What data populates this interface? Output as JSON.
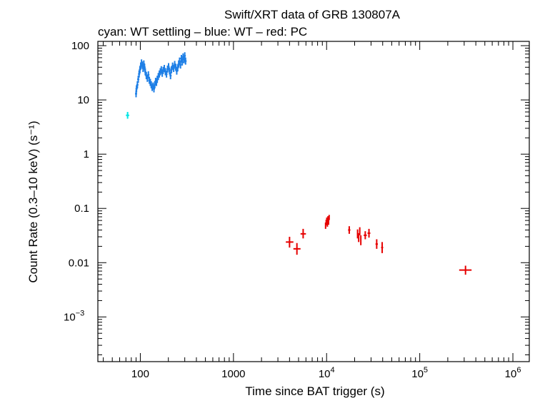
{
  "chart_data": {
    "type": "scatter",
    "title": "Swift/XRT data of GRB 130807A",
    "subtitle": "cyan: WT settling – blue: WT – red: PC",
    "xlabel": "Time since BAT trigger (s)",
    "ylabel": "Count Rate (0.3–10 keV) (s⁻¹)",
    "xscale": "log",
    "yscale": "log",
    "xlim": [
      35,
      1500000
    ],
    "ylim": [
      0.00015,
      120
    ],
    "x_ticks": [
      {
        "value": 100,
        "label": "100"
      },
      {
        "value": 1000,
        "label": "1000"
      },
      {
        "value": 10000,
        "label": "10",
        "exp": "4"
      },
      {
        "value": 100000,
        "label": "10",
        "exp": "5"
      },
      {
        "value": 1000000,
        "label": "10",
        "exp": "6"
      }
    ],
    "y_ticks": [
      {
        "value": 100,
        "label": "100"
      },
      {
        "value": 10,
        "label": "10"
      },
      {
        "value": 1,
        "label": "1"
      },
      {
        "value": 0.1,
        "label": "0.1"
      },
      {
        "value": 0.01,
        "label": "0.01"
      },
      {
        "value": 0.001,
        "label": "10",
        "exp": "−3"
      }
    ],
    "series": [
      {
        "name": "WT settling",
        "color": "#00e5e5",
        "points": [
          {
            "x": 73,
            "xlo": 70,
            "xhi": 76,
            "y": 5.2,
            "ylo": 4.5,
            "yhi": 6.0
          }
        ]
      },
      {
        "name": "WT",
        "color": "#1e7fe6",
        "points": [
          {
            "x": 90,
            "y": 13
          },
          {
            "x": 91,
            "y": 16
          },
          {
            "x": 93,
            "y": 19
          },
          {
            "x": 95,
            "y": 24
          },
          {
            "x": 97,
            "y": 30
          },
          {
            "x": 99,
            "y": 36
          },
          {
            "x": 101,
            "y": 42
          },
          {
            "x": 103,
            "y": 48
          },
          {
            "x": 105,
            "y": 44
          },
          {
            "x": 107,
            "y": 38
          },
          {
            "x": 109,
            "y": 46
          },
          {
            "x": 111,
            "y": 40
          },
          {
            "x": 113,
            "y": 33
          },
          {
            "x": 116,
            "y": 28
          },
          {
            "x": 119,
            "y": 25
          },
          {
            "x": 122,
            "y": 29
          },
          {
            "x": 125,
            "y": 23
          },
          {
            "x": 128,
            "y": 21
          },
          {
            "x": 131,
            "y": 19
          },
          {
            "x": 134,
            "y": 17
          },
          {
            "x": 137,
            "y": 18
          },
          {
            "x": 140,
            "y": 16
          },
          {
            "x": 143,
            "y": 19
          },
          {
            "x": 146,
            "y": 22
          },
          {
            "x": 149,
            "y": 21
          },
          {
            "x": 152,
            "y": 24
          },
          {
            "x": 156,
            "y": 27
          },
          {
            "x": 160,
            "y": 30
          },
          {
            "x": 164,
            "y": 33
          },
          {
            "x": 168,
            "y": 36
          },
          {
            "x": 172,
            "y": 31
          },
          {
            "x": 176,
            "y": 35
          },
          {
            "x": 181,
            "y": 38
          },
          {
            "x": 186,
            "y": 33
          },
          {
            "x": 191,
            "y": 30
          },
          {
            "x": 196,
            "y": 37
          },
          {
            "x": 201,
            "y": 41
          },
          {
            "x": 206,
            "y": 34
          },
          {
            "x": 211,
            "y": 28
          },
          {
            "x": 216,
            "y": 36
          },
          {
            "x": 222,
            "y": 42
          },
          {
            "x": 228,
            "y": 38
          },
          {
            "x": 234,
            "y": 45
          },
          {
            "x": 240,
            "y": 40
          },
          {
            "x": 246,
            "y": 34
          },
          {
            "x": 252,
            "y": 39
          },
          {
            "x": 258,
            "y": 46
          },
          {
            "x": 264,
            "y": 52
          },
          {
            "x": 270,
            "y": 44
          },
          {
            "x": 276,
            "y": 58
          },
          {
            "x": 282,
            "y": 50
          },
          {
            "x": 288,
            "y": 62
          },
          {
            "x": 294,
            "y": 55
          },
          {
            "x": 300,
            "y": 65
          },
          {
            "x": 306,
            "y": 52
          }
        ]
      },
      {
        "name": "PC",
        "color": "#e60000",
        "points": [
          {
            "x": 4000,
            "xlo": 3650,
            "xhi": 4400,
            "y": 0.024,
            "ylo": 0.019,
            "yhi": 0.03
          },
          {
            "x": 4800,
            "xlo": 4400,
            "xhi": 5250,
            "y": 0.018,
            "ylo": 0.014,
            "yhi": 0.023
          },
          {
            "x": 5600,
            "xlo": 5250,
            "xhi": 6000,
            "y": 0.034,
            "ylo": 0.028,
            "yhi": 0.042
          },
          {
            "x": 9750,
            "xlo": 9650,
            "xhi": 9850,
            "y": 0.048,
            "ylo": 0.042,
            "yhi": 0.055
          },
          {
            "x": 9900,
            "xlo": 9800,
            "xhi": 10000,
            "y": 0.055,
            "ylo": 0.049,
            "yhi": 0.062
          },
          {
            "x": 10050,
            "xlo": 9950,
            "xhi": 10150,
            "y": 0.06,
            "ylo": 0.053,
            "yhi": 0.068
          },
          {
            "x": 10200,
            "xlo": 10100,
            "xhi": 10300,
            "y": 0.052,
            "ylo": 0.046,
            "yhi": 0.059
          },
          {
            "x": 10350,
            "xlo": 10250,
            "xhi": 10450,
            "y": 0.064,
            "ylo": 0.057,
            "yhi": 0.072
          },
          {
            "x": 10500,
            "xlo": 10400,
            "xhi": 10600,
            "y": 0.057,
            "ylo": 0.05,
            "yhi": 0.064
          },
          {
            "x": 10650,
            "xlo": 10550,
            "xhi": 10750,
            "y": 0.068,
            "ylo": 0.061,
            "yhi": 0.076
          },
          {
            "x": 17500,
            "xlo": 17000,
            "xhi": 18000,
            "y": 0.04,
            "ylo": 0.034,
            "yhi": 0.047
          },
          {
            "x": 21500,
            "xlo": 21200,
            "xhi": 21800,
            "y": 0.034,
            "ylo": 0.028,
            "yhi": 0.041
          },
          {
            "x": 22100,
            "xlo": 21800,
            "xhi": 22400,
            "y": 0.029,
            "ylo": 0.024,
            "yhi": 0.035
          },
          {
            "x": 22700,
            "xlo": 22400,
            "xhi": 23000,
            "y": 0.038,
            "ylo": 0.032,
            "yhi": 0.045
          },
          {
            "x": 23300,
            "xlo": 23000,
            "xhi": 23600,
            "y": 0.026,
            "ylo": 0.021,
            "yhi": 0.032
          },
          {
            "x": 26000,
            "xlo": 25000,
            "xhi": 27000,
            "y": 0.032,
            "ylo": 0.027,
            "yhi": 0.038
          },
          {
            "x": 28500,
            "xlo": 27500,
            "xhi": 29500,
            "y": 0.035,
            "ylo": 0.029,
            "yhi": 0.042
          },
          {
            "x": 34500,
            "xlo": 33500,
            "xhi": 35500,
            "y": 0.022,
            "ylo": 0.018,
            "yhi": 0.027
          },
          {
            "x": 39500,
            "xlo": 38500,
            "xhi": 40500,
            "y": 0.019,
            "ylo": 0.015,
            "yhi": 0.024
          },
          {
            "x": 310000,
            "xlo": 265000,
            "xhi": 360000,
            "y": 0.0073,
            "ylo": 0.006,
            "yhi": 0.0088
          }
        ]
      }
    ]
  }
}
